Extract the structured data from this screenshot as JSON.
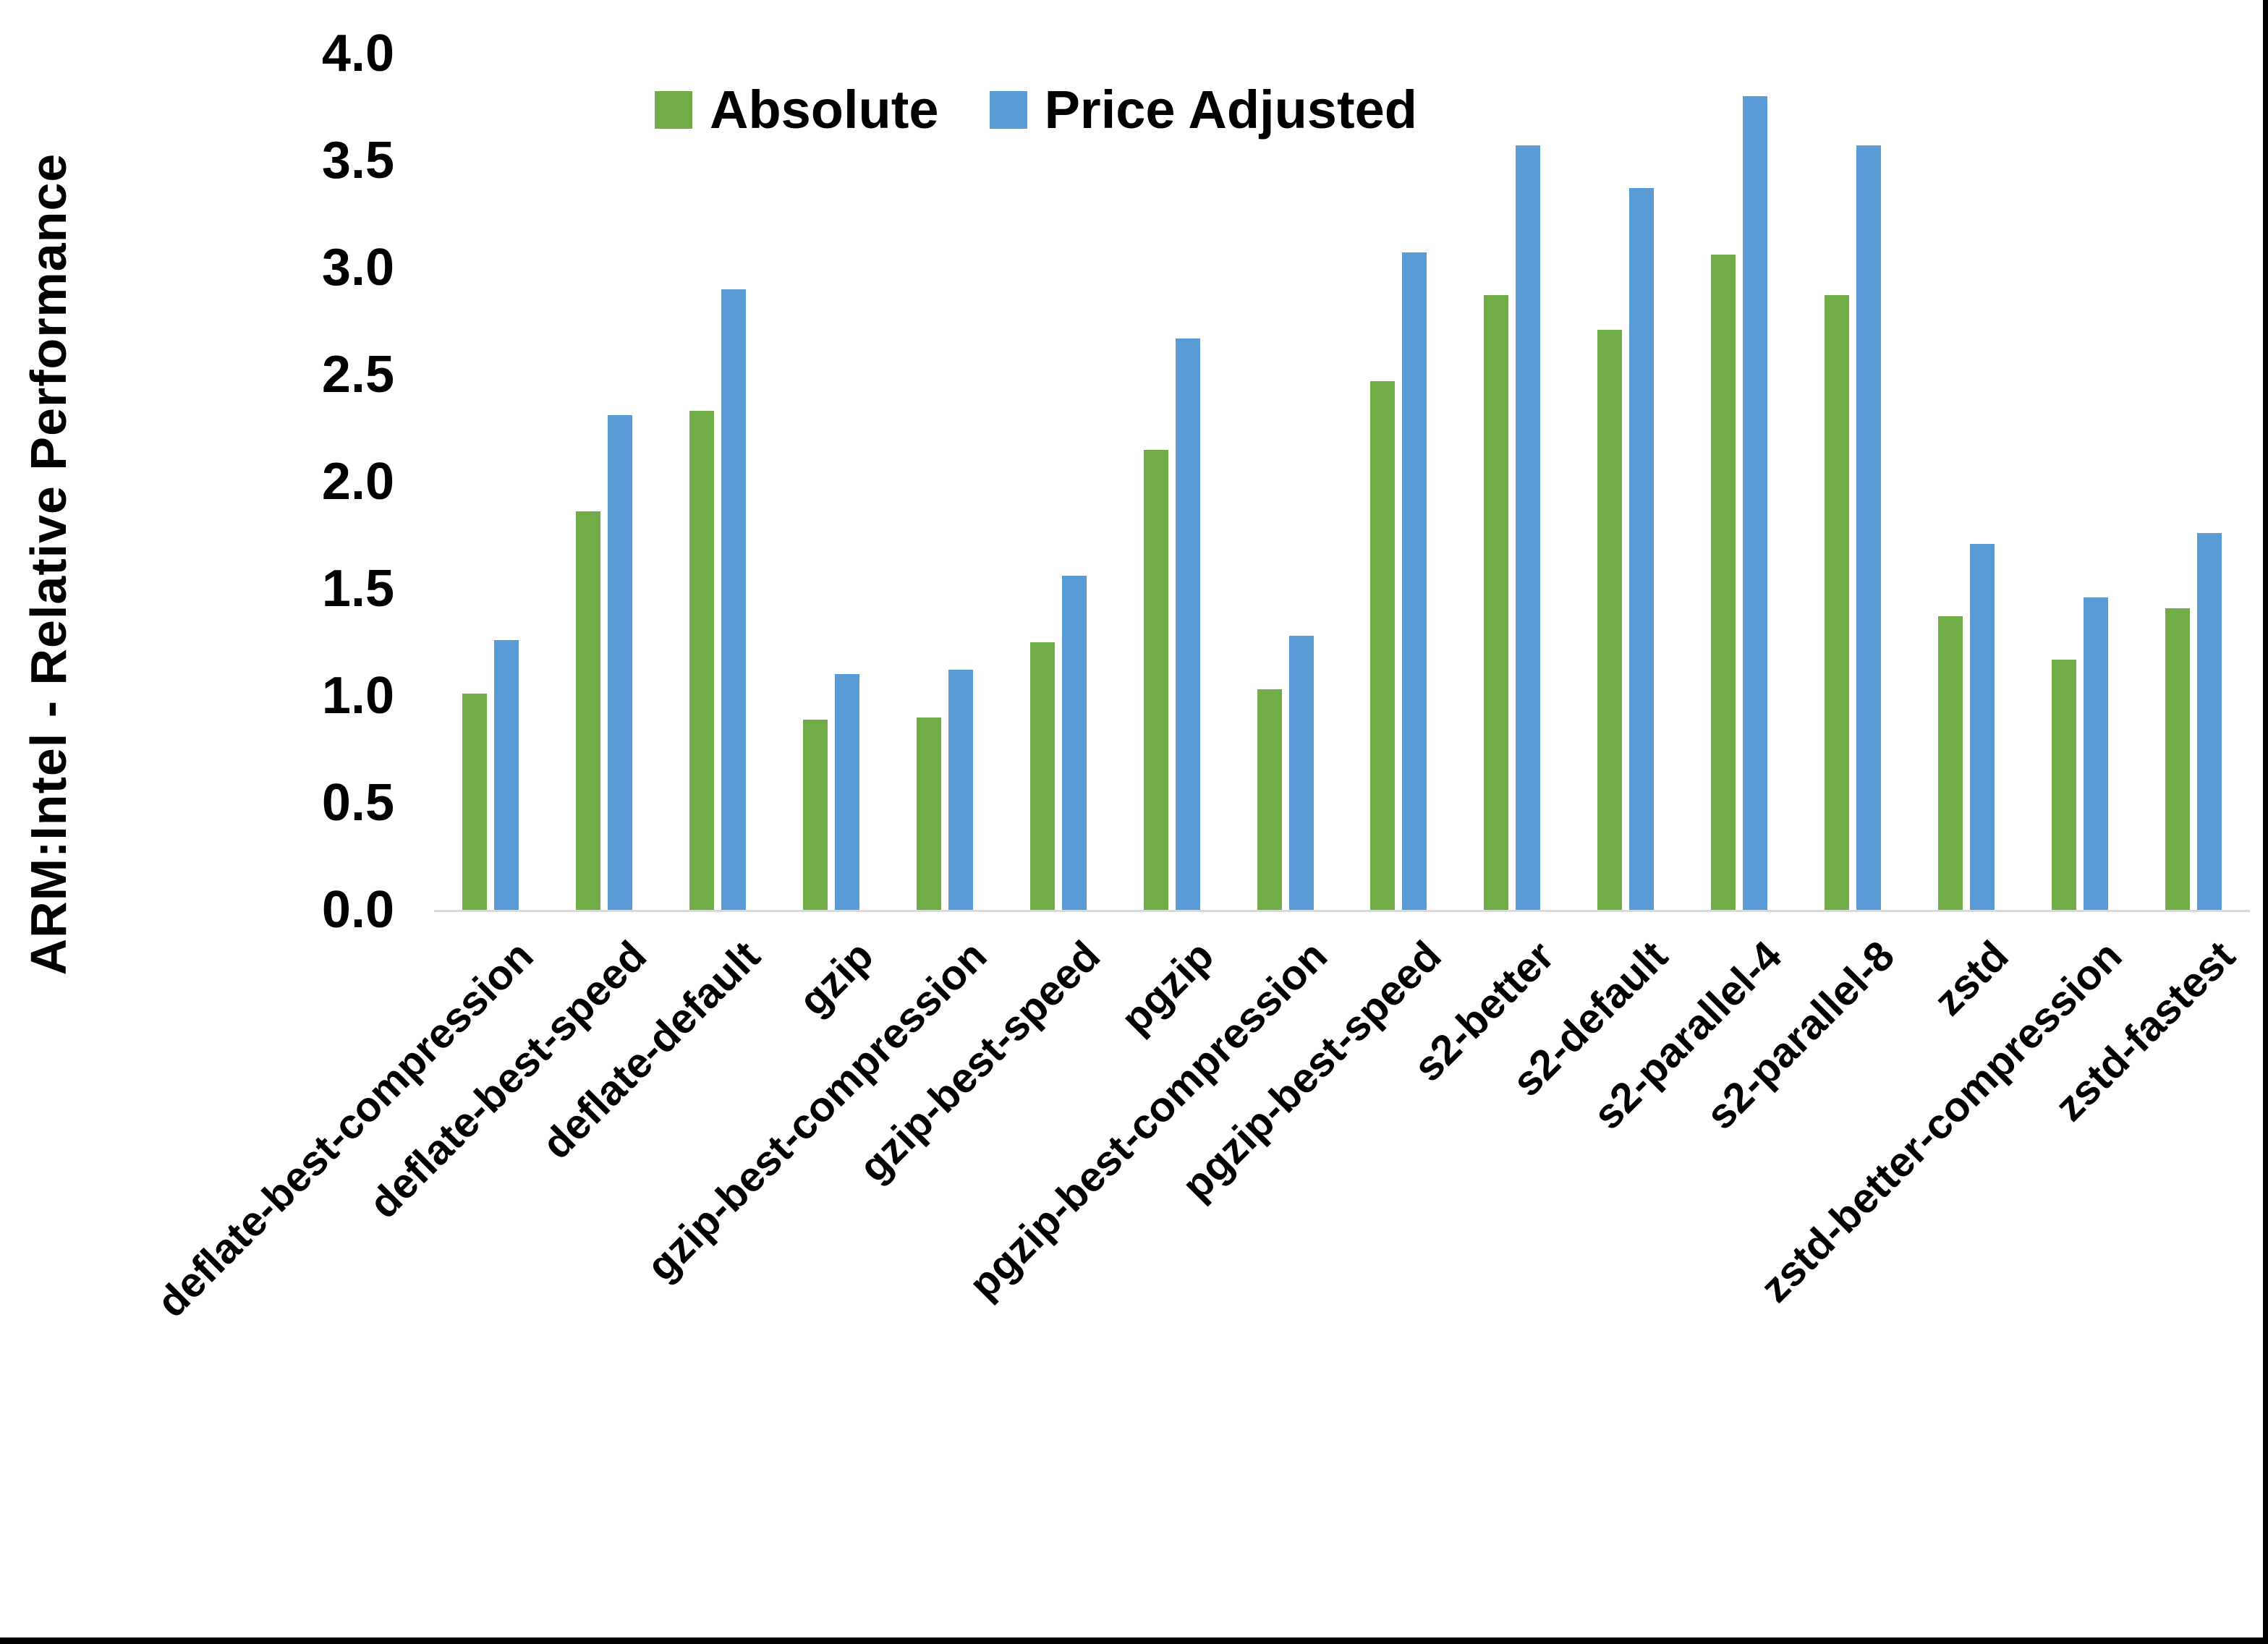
{
  "page": {
    "background": "#ffffff",
    "frame_color": "#000000"
  },
  "chart_data": {
    "type": "bar",
    "title": "",
    "xlabel": "",
    "ylabel": "ARM:Intel - Relative Performance",
    "ylim": [
      0.0,
      4.0
    ],
    "ytick_labels": [
      "4.0",
      "3.5",
      "3.0",
      "2.5",
      "2.0",
      "1.5",
      "1.0",
      "0.5",
      "0.0"
    ],
    "grid": false,
    "legend_position": "top",
    "axis_line_color": "#d9d9d9",
    "categories": [
      "deflate-best-compression",
      "deflate-best-speed",
      "deflate-default",
      "gzip",
      "gzip-best-compression",
      "gzip-best-speed",
      "pgzip",
      "pgzip-best-compression",
      "pgzip-best-speed",
      "s2-better",
      "s2-default",
      "s2-parallel-4",
      "s2-parallel-8",
      "zstd",
      "zstd-better-compression",
      "zstd-fastest"
    ],
    "series": [
      {
        "name": "Absolute",
        "color": "#70AD47",
        "values": [
          1.01,
          1.86,
          2.33,
          0.89,
          0.9,
          1.25,
          2.15,
          1.03,
          2.47,
          2.87,
          2.71,
          3.06,
          2.87,
          1.37,
          1.17,
          1.41
        ]
      },
      {
        "name": "Price Adjusted",
        "color": "#5B9BD5",
        "values": [
          1.26,
          2.31,
          2.9,
          1.1,
          1.12,
          1.56,
          2.67,
          1.28,
          3.07,
          3.57,
          3.37,
          3.8,
          3.57,
          1.71,
          1.46,
          1.76
        ]
      }
    ]
  }
}
